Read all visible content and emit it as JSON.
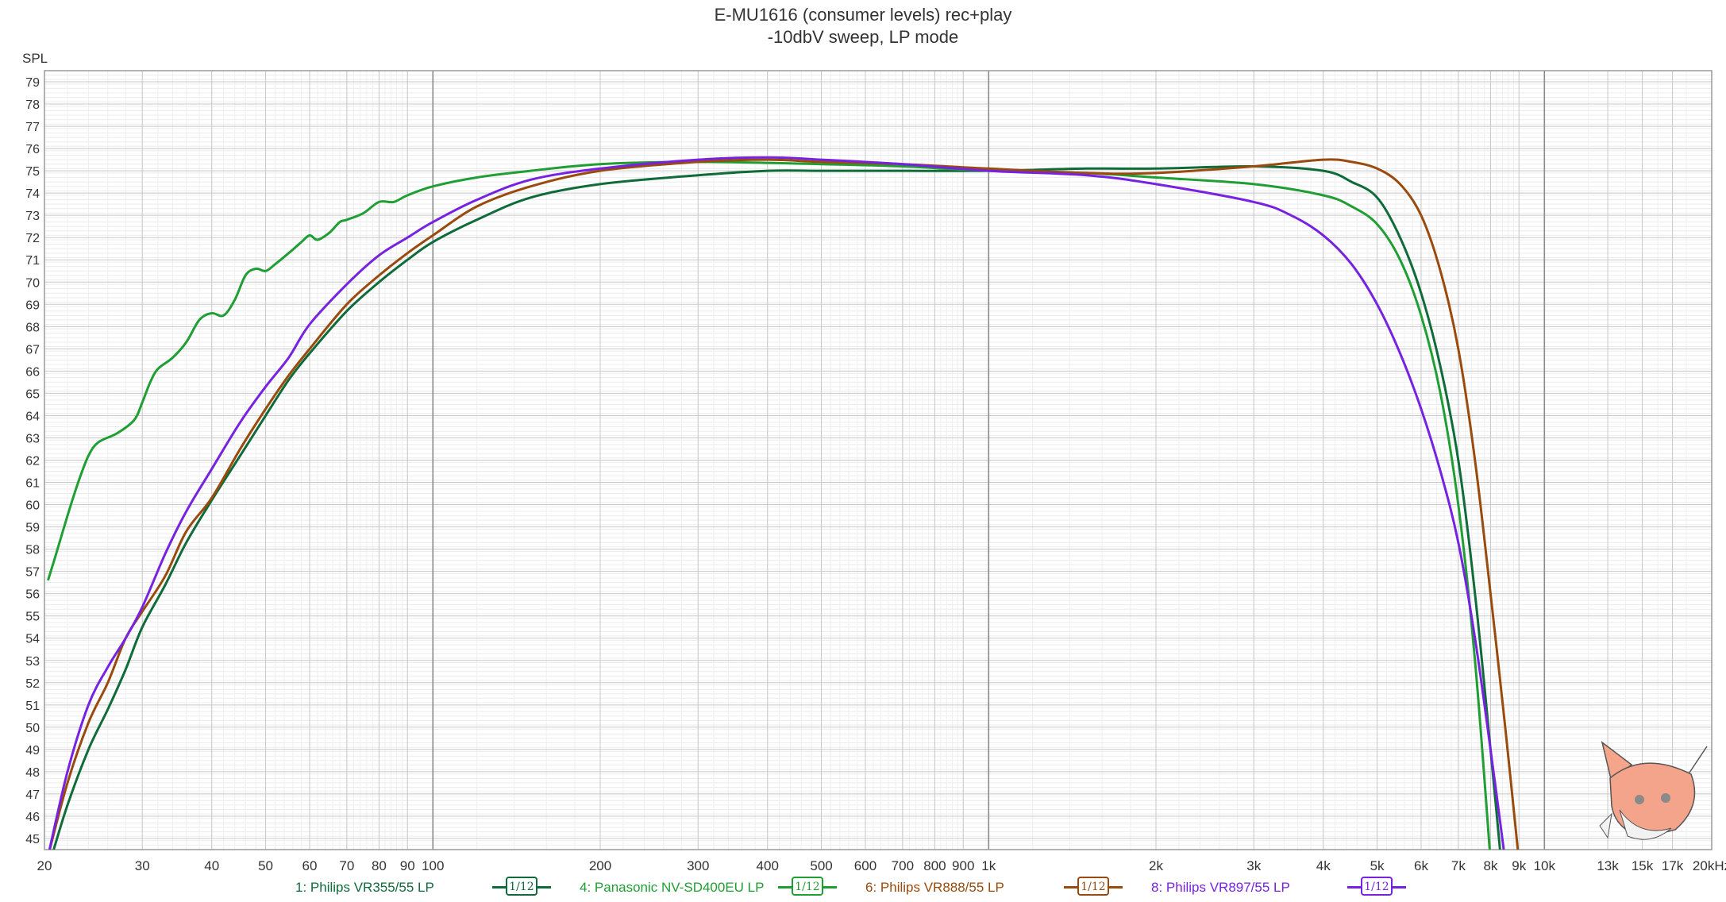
{
  "title": "E-MU1616 (consumer levels) rec+play",
  "subtitle": "-10dbV sweep, LP mode",
  "chart_data": {
    "type": "line",
    "title": "E-MU1616 (consumer levels) rec+play",
    "subtitle": "-10dbV sweep, LP mode",
    "ylabel": "SPL",
    "xlabel": "",
    "x_scale": "log",
    "xlim": [
      20,
      20000
    ],
    "ylim": [
      44.5,
      79.5
    ],
    "grid": true,
    "x_ticks": [
      {
        "v": 20,
        "label": "20"
      },
      {
        "v": 30,
        "label": "30"
      },
      {
        "v": 40,
        "label": "40"
      },
      {
        "v": 50,
        "label": "50"
      },
      {
        "v": 60,
        "label": "60"
      },
      {
        "v": 70,
        "label": "70"
      },
      {
        "v": 80,
        "label": "80"
      },
      {
        "v": 90,
        "label": "90"
      },
      {
        "v": 100,
        "label": "100"
      },
      {
        "v": 200,
        "label": "200"
      },
      {
        "v": 300,
        "label": "300"
      },
      {
        "v": 400,
        "label": "400"
      },
      {
        "v": 500,
        "label": "500"
      },
      {
        "v": 600,
        "label": "600"
      },
      {
        "v": 700,
        "label": "700"
      },
      {
        "v": 800,
        "label": "800"
      },
      {
        "v": 900,
        "label": "900"
      },
      {
        "v": 1000,
        "label": "1k"
      },
      {
        "v": 2000,
        "label": "2k"
      },
      {
        "v": 3000,
        "label": "3k"
      },
      {
        "v": 4000,
        "label": "4k"
      },
      {
        "v": 5000,
        "label": "5k"
      },
      {
        "v": 6000,
        "label": "6k"
      },
      {
        "v": 7000,
        "label": "7k"
      },
      {
        "v": 8000,
        "label": "8k"
      },
      {
        "v": 9000,
        "label": "9k"
      },
      {
        "v": 10000,
        "label": "10k"
      },
      {
        "v": 13000,
        "label": "13k"
      },
      {
        "v": 15000,
        "label": "15k"
      },
      {
        "v": 17000,
        "label": "17k"
      },
      {
        "v": 20000,
        "label": "20kHz"
      }
    ],
    "y_ticks": [
      45,
      46,
      47,
      48,
      49,
      50,
      51,
      52,
      53,
      54,
      55,
      56,
      57,
      58,
      59,
      60,
      61,
      62,
      63,
      64,
      65,
      66,
      67,
      68,
      69,
      70,
      71,
      72,
      73,
      74,
      75,
      76,
      77,
      78,
      79
    ],
    "series": [
      {
        "name": "1: Philips VR355/55 LP",
        "color": "#0f6b3a",
        "smoothing": "1/12",
        "x": [
          20.5,
          22,
          24,
          26,
          28,
          30,
          33,
          36,
          40,
          45,
          50,
          55,
          60,
          70,
          80,
          90,
          100,
          120,
          150,
          200,
          300,
          400,
          500,
          700,
          1000,
          1500,
          2000,
          3000,
          4000,
          4500,
          5000,
          5500,
          6000,
          6500,
          7000,
          7500,
          8000,
          8500
        ],
        "y": [
          44.0,
          46.5,
          49.0,
          50.8,
          52.6,
          54.5,
          56.4,
          58.3,
          60.2,
          62.2,
          64.0,
          65.6,
          66.8,
          68.7,
          70.0,
          71.0,
          71.8,
          72.8,
          73.8,
          74.4,
          74.8,
          75.0,
          75.0,
          75.0,
          75.0,
          75.1,
          75.1,
          75.2,
          75.0,
          74.5,
          73.8,
          72.0,
          69.5,
          66.2,
          62.0,
          56.0,
          49.0,
          42.0
        ]
      },
      {
        "name": "4: Panasonic NV-SD400EU LP",
        "color": "#1f9e33",
        "smoothing": "1/12",
        "x": [
          20.3,
          21,
          22,
          23,
          24,
          25,
          27,
          29,
          30,
          31,
          32,
          34,
          36,
          38,
          40,
          42,
          44,
          46,
          48,
          50,
          52,
          55,
          58,
          60,
          62,
          65,
          68,
          70,
          75,
          80,
          85,
          90,
          100,
          120,
          150,
          200,
          300,
          500,
          700,
          1000,
          1500,
          2000,
          3000,
          4000,
          4500,
          5000,
          5500,
          6000,
          6500,
          7000,
          7500,
          8000
        ],
        "y": [
          56.6,
          57.8,
          59.5,
          61.0,
          62.2,
          62.8,
          63.2,
          63.8,
          64.6,
          65.5,
          66.1,
          66.6,
          67.3,
          68.3,
          68.6,
          68.5,
          69.2,
          70.3,
          70.6,
          70.5,
          70.8,
          71.3,
          71.8,
          72.1,
          71.9,
          72.2,
          72.7,
          72.8,
          73.1,
          73.6,
          73.6,
          73.9,
          74.3,
          74.7,
          75.0,
          75.3,
          75.4,
          75.3,
          75.2,
          75.0,
          74.9,
          74.7,
          74.4,
          73.9,
          73.4,
          72.6,
          71.0,
          68.5,
          65.0,
          60.0,
          53.0,
          44.0
        ]
      },
      {
        "name": "6: Philips VR888/55 LP",
        "color": "#9a4a0c",
        "smoothing": "1/12",
        "x": [
          20.3,
          22,
          24,
          26,
          28,
          30,
          33,
          36,
          40,
          45,
          50,
          55,
          60,
          70,
          80,
          90,
          100,
          120,
          150,
          200,
          300,
          400,
          500,
          700,
          1000,
          1500,
          2000,
          3000,
          4000,
          4500,
          5000,
          5500,
          6000,
          6500,
          7000,
          7500,
          8000,
          8500,
          9000
        ],
        "y": [
          44.2,
          47.5,
          50.2,
          52.0,
          54.0,
          55.2,
          56.8,
          58.8,
          60.3,
          62.5,
          64.3,
          65.8,
          67.0,
          69.0,
          70.3,
          71.3,
          72.1,
          73.4,
          74.3,
          75.0,
          75.4,
          75.5,
          75.4,
          75.3,
          75.1,
          74.9,
          74.9,
          75.2,
          75.5,
          75.4,
          75.1,
          74.4,
          73.0,
          70.5,
          67.0,
          62.0,
          56.0,
          50.0,
          44.0
        ]
      },
      {
        "name": "8: Philips VR897/55 LP",
        "color": "#7722e0",
        "smoothing": "1/12",
        "x": [
          20.3,
          22,
          24,
          26,
          28,
          30,
          33,
          36,
          40,
          45,
          50,
          55,
          60,
          70,
          80,
          90,
          100,
          120,
          150,
          200,
          300,
          400,
          500,
          700,
          1000,
          1500,
          2000,
          3000,
          3500,
          4000,
          4500,
          5000,
          5500,
          6000,
          6500,
          7000,
          7500,
          8000,
          8500
        ],
        "y": [
          44.2,
          48.0,
          51.0,
          52.7,
          54.0,
          55.4,
          57.8,
          59.7,
          61.6,
          63.7,
          65.3,
          66.6,
          68.1,
          69.9,
          71.2,
          72.0,
          72.7,
          73.7,
          74.6,
          75.1,
          75.5,
          75.6,
          75.5,
          75.3,
          75.0,
          74.8,
          74.4,
          73.6,
          73.0,
          72.1,
          70.8,
          69.0,
          66.8,
          64.3,
          61.5,
          58.3,
          54.0,
          49.0,
          44.0
        ]
      }
    ]
  },
  "legend": [
    {
      "label": "1: Philips VR355/55 LP",
      "color": "#0f6b3a",
      "badge": "1/12"
    },
    {
      "label": "4: Panasonic NV-SD400EU LP",
      "color": "#1f9e33",
      "badge": "1/12"
    },
    {
      "label": "6: Philips VR888/55 LP",
      "color": "#9a4a0c",
      "badge": "1/12"
    },
    {
      "label": "8: Philips VR897/55 LP",
      "color": "#7722e0",
      "badge": "1/12"
    }
  ]
}
